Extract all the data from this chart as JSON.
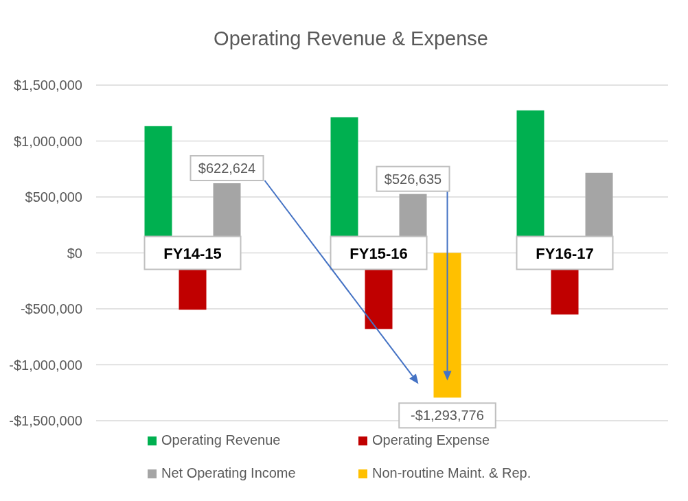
{
  "chart_data": {
    "type": "bar",
    "title": "Operating Revenue & Expense",
    "categories": [
      "FY14-15",
      "FY15-16",
      "FY16-17"
    ],
    "series": [
      {
        "name": "Operating Revenue",
        "color": "#00b050",
        "values": [
          1133000,
          1212000,
          1274000
        ]
      },
      {
        "name": "Operating Expense",
        "color": "#c00000",
        "values": [
          -508000,
          -680000,
          -551000
        ]
      },
      {
        "name": "Net Operating Income",
        "color": "#a5a5a5",
        "values": [
          622624,
          526635,
          716000
        ],
        "value_labels": [
          "$622,624",
          "$526,635",
          null
        ]
      },
      {
        "name": "Non-routine Maint. & Rep.",
        "color": "#ffc000",
        "values": [
          null,
          -1293776,
          null
        ],
        "value_labels": [
          null,
          "-$1,293,776",
          null
        ]
      }
    ],
    "ylim": [
      -1500000,
      1500000
    ],
    "yticks": [
      {
        "value": -1500000,
        "label": "-$1,500,000"
      },
      {
        "value": -1000000,
        "label": "-$1,000,000"
      },
      {
        "value": -500000,
        "label": "-$500,000"
      },
      {
        "value": 0,
        "label": "$0"
      },
      {
        "value": 500000,
        "label": "$500,000"
      },
      {
        "value": 1000000,
        "label": "$1,000,000"
      },
      {
        "value": 1500000,
        "label": "$1,500,000"
      }
    ],
    "grid": "y",
    "legend": "bottom"
  }
}
